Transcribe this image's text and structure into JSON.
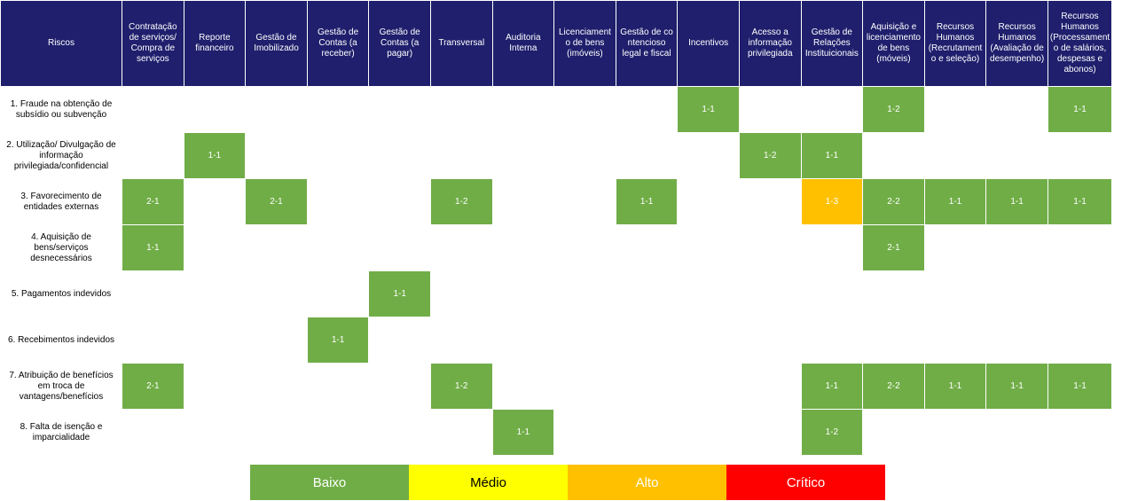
{
  "corner_label": "Riscos",
  "columns": [
    "Contratação de serviços/ Compra de serviços",
    "Reporte financeiro",
    "Gestão de Imobilizado",
    "Gestão de Contas (a receber)",
    "Gestão de Contas (a pagar)",
    "Transversal",
    "Auditoria Interna",
    "Licenciament o de bens (imóveis)",
    "Gestão de co ntencioso legal e fiscal",
    "Incentivos",
    "Acesso a informação privilegiada",
    "Gestão de Relações Instituicionais",
    "Aquisição e licenciamento de bens (móveis)",
    "Recursos Humanos (Recrutament o e seleção)",
    "Recursos Humanos (Avaliação de desempenho)",
    "Recursos Humanos (Processament o de salários, despesas e abonos)"
  ],
  "rows": [
    {
      "risk": "1. Fraude na obtenção de subsídio ou subvenção",
      "cells": [
        "",
        "",
        "",
        "",
        "",
        "",
        "",
        "",
        "",
        "1-1",
        "",
        "",
        "1-2",
        "",
        "",
        "1-1"
      ]
    },
    {
      "risk": "2. Utilização/ Divulgação de informação privilegiada/confidencial",
      "cells": [
        "",
        "1-1",
        "",
        "",
        "",
        "",
        "",
        "",
        "",
        "",
        "1-2",
        "1-1",
        "",
        "",
        "",
        ""
      ]
    },
    {
      "risk": "3. Favorecimento de entidades externas",
      "cells": [
        "2-1",
        "",
        "2-1",
        "",
        "",
        "1-2",
        "",
        "",
        "1-1",
        "",
        "",
        "1-3",
        "2-2",
        "1-1",
        "1-1",
        "1-1"
      ]
    },
    {
      "risk": "4. Aquisição de bens/serviços desnecessários",
      "cells": [
        "1-1",
        "",
        "",
        "",
        "",
        "",
        "",
        "",
        "",
        "",
        "",
        "",
        "2-1",
        "",
        "",
        ""
      ]
    },
    {
      "risk": "5. Pagamentos indevidos",
      "cells": [
        "",
        "",
        "",
        "",
        "1-1",
        "",
        "",
        "",
        "",
        "",
        "",
        "",
        "",
        "",
        "",
        ""
      ]
    },
    {
      "risk": "6. Recebimentos indevidos",
      "cells": [
        "",
        "",
        "",
        "1-1",
        "",
        "",
        "",
        "",
        "",
        "",
        "",
        "",
        "",
        "",
        "",
        ""
      ]
    },
    {
      "risk": "7. Atribuição de benefícios em troca de vantagens/benefícios",
      "cells": [
        "2-1",
        "",
        "",
        "",
        "",
        "1-2",
        "",
        "",
        "",
        "",
        "",
        "1-1",
        "2-2",
        "1-1",
        "1-1",
        "1-1"
      ]
    },
    {
      "risk": "8. Falta de isenção e imparcialidade",
      "cells": [
        "",
        "",
        "",
        "",
        "",
        "",
        "1-1",
        "",
        "",
        "",
        "",
        "1-2",
        "",
        "",
        "",
        ""
      ]
    }
  ],
  "level_colors": {
    "Baixo": "#70ad47",
    "Alto": "#ffc000"
  },
  "level_by_value": {
    "1-1": "Baixo",
    "1-2": "Baixo",
    "2-1": "Baixo",
    "2-2": "Baixo",
    "1-3": "Alto"
  },
  "legend": [
    {
      "label": "Baixo",
      "color": "#70ad47",
      "text_color": "#ffffff"
    },
    {
      "label": "Médio",
      "color": "#ffff00",
      "text_color": "#000000"
    },
    {
      "label": "Alto",
      "color": "#ffc000",
      "text_color": "#ffffff"
    },
    {
      "label": "Crítico",
      "color": "#ff0000",
      "text_color": "#ffffff"
    }
  ]
}
